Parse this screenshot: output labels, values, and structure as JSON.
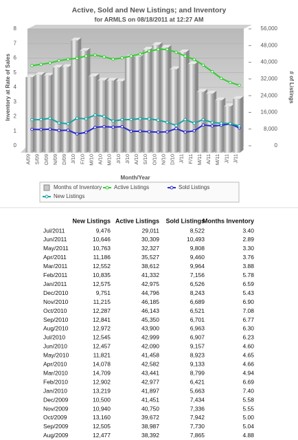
{
  "chart_data": {
    "type": "bar",
    "title": "Active, Sold and New Listings; and Inventory",
    "subtitle": "for ARMLS on 08/18/2011 at 12:27 AM",
    "x_label": "Month/Year",
    "y_label": "Inventory at Rate of Sales",
    "y2_label": "# of Listings",
    "categories": [
      "A/09",
      "S/09",
      "O/09",
      "N/09",
      "D/09",
      "J/10",
      "F/10",
      "M/10",
      "A/10",
      "M/10",
      "J/10",
      "J/10",
      "A/10",
      "S/10",
      "O/10",
      "N/10",
      "D/10",
      "J/11",
      "F/11",
      "M/11",
      "A/11",
      "M/11",
      "J/11",
      "J/11"
    ],
    "ylim": [
      0,
      8
    ],
    "yticks": [
      0,
      1,
      2,
      3,
      4,
      5,
      6,
      7,
      8
    ],
    "y2lim": [
      0,
      56000
    ],
    "y2ticks": [
      {
        "value": 0,
        "label": "0"
      },
      {
        "value": 8000,
        "label": "8,000"
      },
      {
        "value": 16000,
        "label": "16,000"
      },
      {
        "value": 24000,
        "label": "24,000"
      },
      {
        "value": 32000,
        "label": "32,000"
      },
      {
        "value": 40000,
        "label": "40,000"
      },
      {
        "value": 48000,
        "label": "48,000"
      },
      {
        "value": 56000,
        "label": "56,000"
      }
    ],
    "series": [
      {
        "name": "Months of Inventory",
        "type": "bar",
        "color": "#c8c8c8",
        "values": [
          4.88,
          5.04,
          5.0,
          5.55,
          5.58,
          7.4,
          6.69,
          4.94,
          4.66,
          4.65,
          4.6,
          6.23,
          6.3,
          6.77,
          7.08,
          6.9,
          5.43,
          6.59,
          5.78,
          3.88,
          3.76,
          3.3,
          2.89,
          3.4
        ]
      },
      {
        "name": "Active Listings",
        "type": "line",
        "axis": "y2",
        "color": "#33cc33",
        "values": [
          38392,
          38987,
          39672,
          40750,
          41451,
          41897,
          42977,
          43441,
          42582,
          41458,
          42090,
          42999,
          43900,
          45350,
          46143,
          46185,
          44796,
          42975,
          41332,
          38612,
          35527,
          32327,
          30309,
          29011
        ]
      },
      {
        "name": "Sold Listings",
        "type": "line",
        "axis": "y2",
        "color": "#2a2acc",
        "values": [
          7865,
          7730,
          7942,
          7336,
          7434,
          5663,
          6421,
          8799,
          9133,
          8923,
          9157,
          6907,
          6963,
          6701,
          6521,
          6689,
          8243,
          6526,
          7156,
          9964,
          9460,
          9808,
          10493,
          8522
        ]
      },
      {
        "name": "New Listings",
        "type": "line",
        "axis": "y2",
        "color": "#1aa3a3",
        "values": [
          12477,
          12505,
          13160,
          10940,
          10500,
          13219,
          12902,
          14709,
          14078,
          11821,
          12457,
          12545,
          12972,
          12841,
          12287,
          11215,
          9751,
          12575,
          10835,
          12552,
          11186,
          10763,
          10646,
          9476
        ]
      }
    ]
  },
  "table": {
    "columns": [
      "New Listings",
      "Active Listings",
      "Sold Listings",
      "Months Inventory"
    ],
    "rows": [
      {
        "label": "Jul/2011",
        "cells": [
          "9,476",
          "29,011",
          "8,522",
          "3.40"
        ]
      },
      {
        "label": "Jun/2011",
        "cells": [
          "10,646",
          "30,309",
          "10,493",
          "2.89"
        ]
      },
      {
        "label": "May/2011",
        "cells": [
          "10,763",
          "32,327",
          "9,808",
          "3.30"
        ]
      },
      {
        "label": "Apr/2011",
        "cells": [
          "11,186",
          "35,527",
          "9,460",
          "3.76"
        ]
      },
      {
        "label": "Mar/2011",
        "cells": [
          "12,552",
          "38,612",
          "9,964",
          "3.88"
        ]
      },
      {
        "label": "Feb/2011",
        "cells": [
          "10,835",
          "41,332",
          "7,156",
          "5.78"
        ]
      },
      {
        "label": "Jan/2011",
        "cells": [
          "12,575",
          "42,975",
          "6,526",
          "6.59"
        ]
      },
      {
        "label": "Dec/2010",
        "cells": [
          "9,751",
          "44,796",
          "8,243",
          "5.43"
        ]
      },
      {
        "label": "Nov/2010",
        "cells": [
          "11,215",
          "46,185",
          "6,689",
          "6.90"
        ]
      },
      {
        "label": "Oct/2010",
        "cells": [
          "12,287",
          "46,143",
          "6,521",
          "7.08"
        ]
      },
      {
        "label": "Sep/2010",
        "cells": [
          "12,841",
          "45,350",
          "6,701",
          "6.77"
        ]
      },
      {
        "label": "Aug/2010",
        "cells": [
          "12,972",
          "43,900",
          "6,963",
          "6.30"
        ]
      },
      {
        "label": "Jul/2010",
        "cells": [
          "12,545",
          "42,999",
          "6,907",
          "6.23"
        ]
      },
      {
        "label": "Jun/2010",
        "cells": [
          "12,457",
          "42,090",
          "9,157",
          "4.60"
        ]
      },
      {
        "label": "May/2010",
        "cells": [
          "11,821",
          "41,458",
          "8,923",
          "4.65"
        ]
      },
      {
        "label": "Apr/2010",
        "cells": [
          "14,078",
          "42,582",
          "9,133",
          "4.66"
        ]
      },
      {
        "label": "Mar/2010",
        "cells": [
          "14,709",
          "43,441",
          "8,799",
          "4.94"
        ]
      },
      {
        "label": "Feb/2010",
        "cells": [
          "12,902",
          "42,977",
          "6,421",
          "6.69"
        ]
      },
      {
        "label": "Jan/2010",
        "cells": [
          "13,219",
          "41,897",
          "5,663",
          "7.40"
        ]
      },
      {
        "label": "Dec/2009",
        "cells": [
          "10,500",
          "41,451",
          "7,434",
          "5.58"
        ]
      },
      {
        "label": "Nov/2009",
        "cells": [
          "10,940",
          "40,750",
          "7,336",
          "5.55"
        ]
      },
      {
        "label": "Oct/2009",
        "cells": [
          "13,160",
          "39,672",
          "7,942",
          "5.00"
        ]
      },
      {
        "label": "Sep/2009",
        "cells": [
          "12,505",
          "38,987",
          "7,730",
          "5.04"
        ]
      },
      {
        "label": "Aug/2009",
        "cells": [
          "12,477",
          "38,392",
          "7,865",
          "4.88"
        ]
      }
    ]
  }
}
